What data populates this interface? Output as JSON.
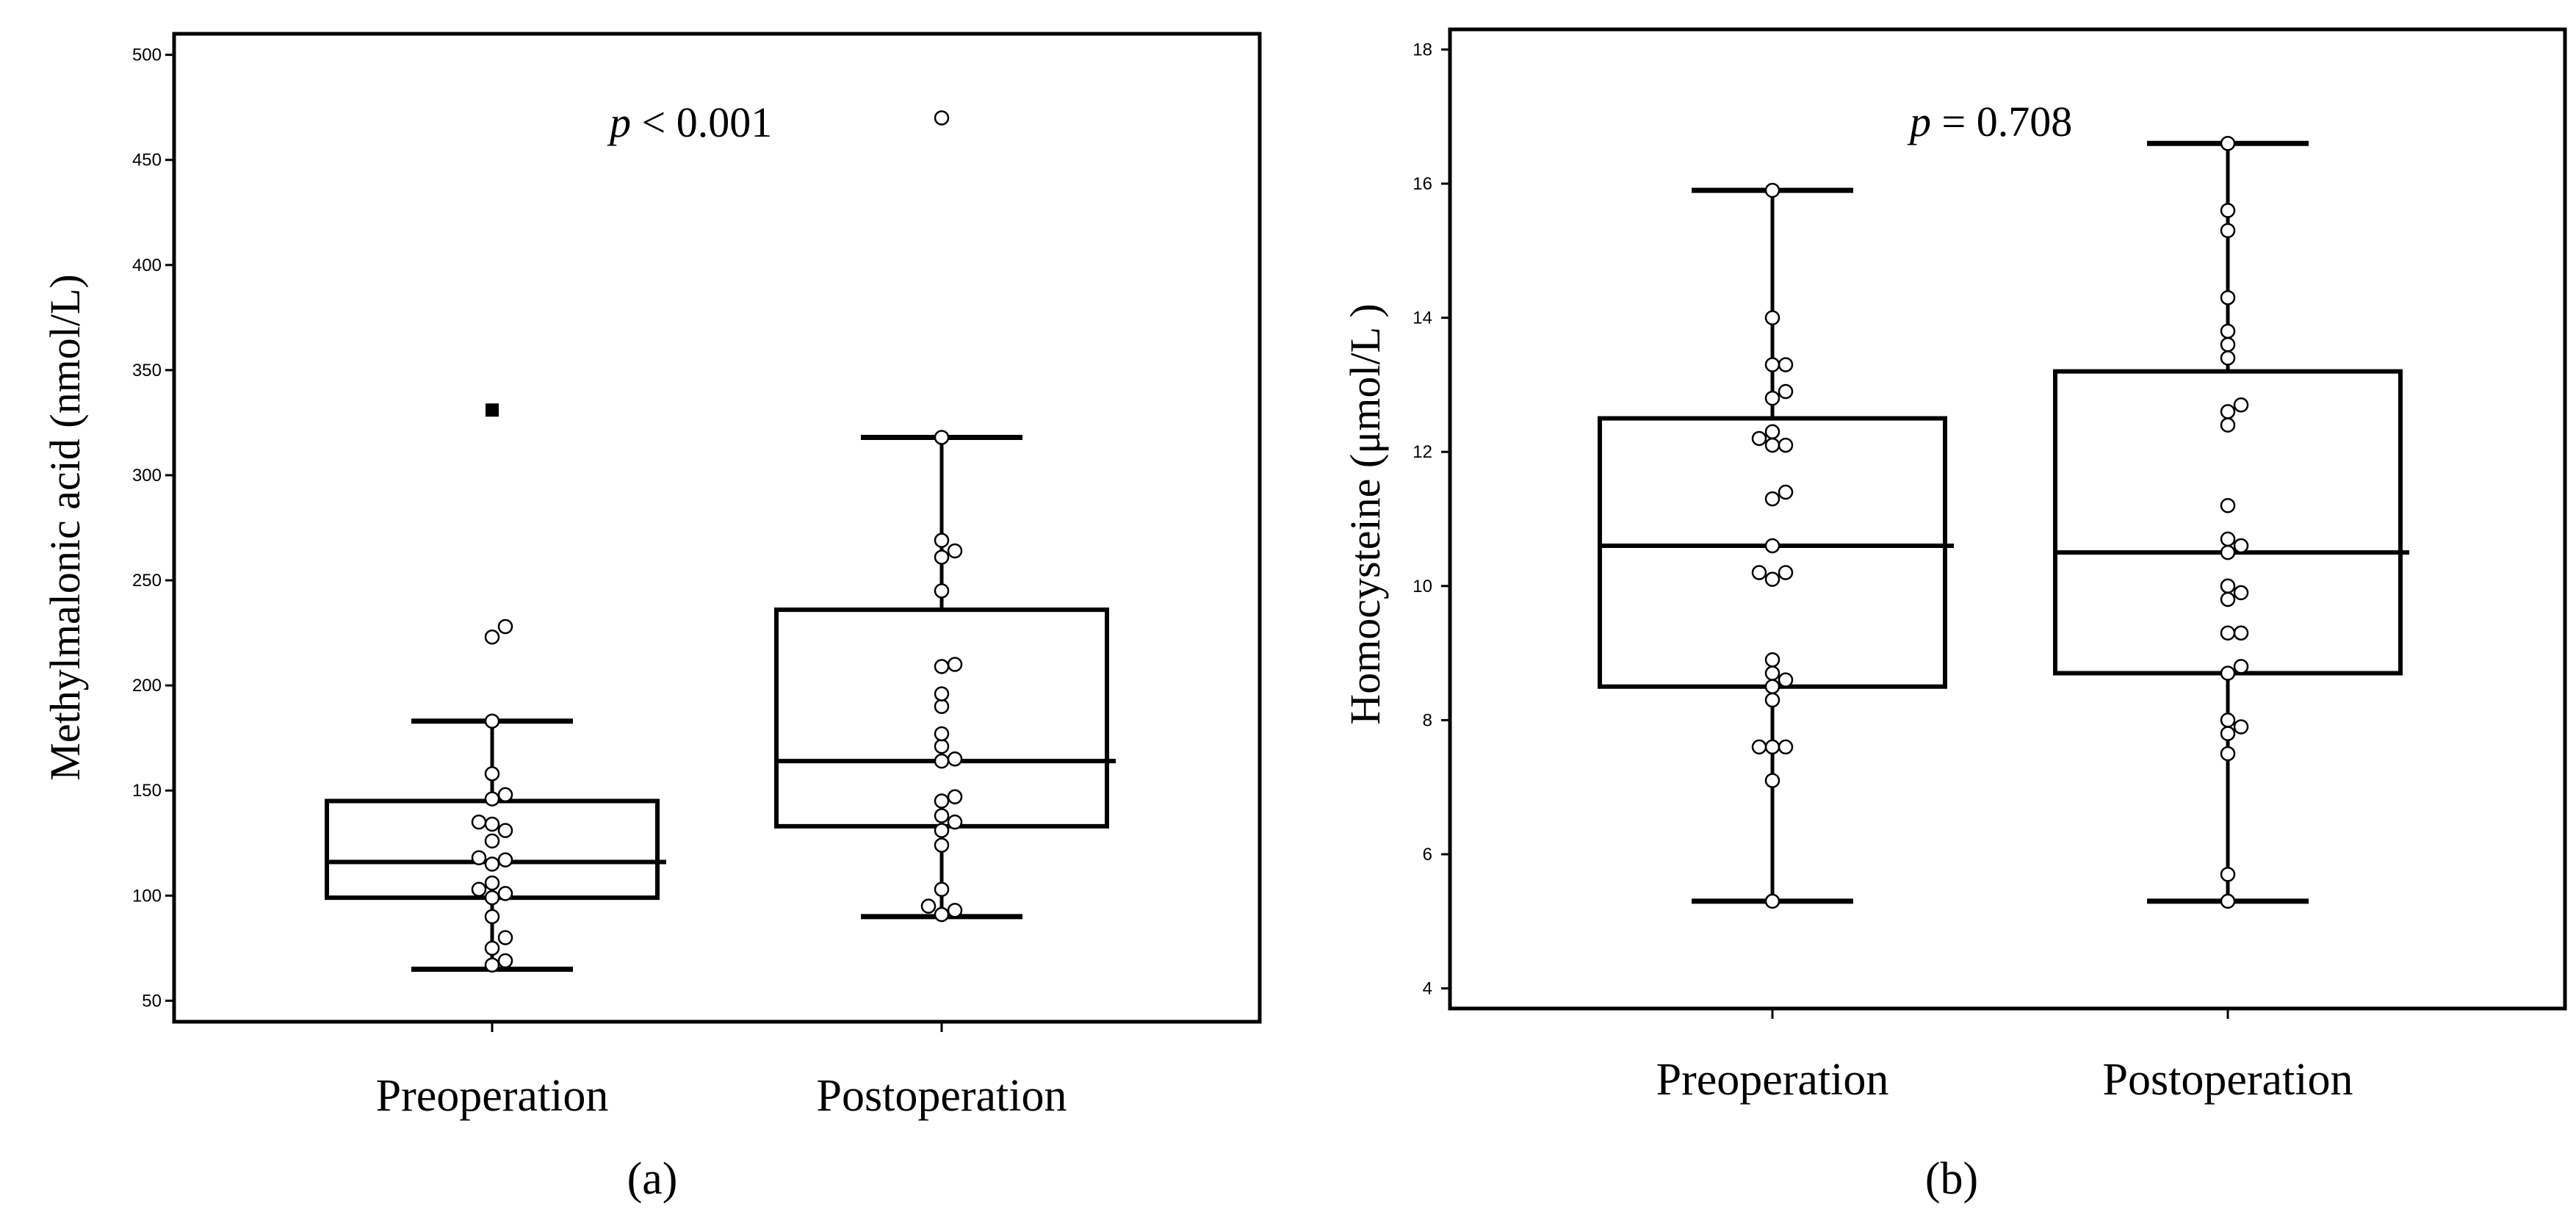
{
  "chart_data": [
    {
      "type": "box",
      "panel_label": "(a)",
      "ylabel": "Methylmalonic acid (nmol/L)",
      "annotation": {
        "p_symbol": "p",
        "p_text": " < 0.001"
      },
      "y_ticks": [
        50,
        100,
        150,
        200,
        250,
        300,
        350,
        400,
        450,
        500
      ],
      "ylim": [
        40,
        510
      ],
      "categories": [
        "Preoperation",
        "Postoperation"
      ],
      "boxes": [
        {
          "name": "Preoperation",
          "whisker_low": 65,
          "q1": 99,
          "median": 116,
          "q3": 145,
          "whisker_high": 183,
          "outliers_filled": [
            331
          ],
          "points": [
            228,
            223,
            183,
            158,
            148,
            146,
            135,
            134,
            131,
            126,
            118,
            117,
            115,
            106,
            103,
            101,
            99,
            90,
            80,
            75,
            69,
            67
          ]
        },
        {
          "name": "Postoperation",
          "whisker_low": 90,
          "q1": 133,
          "median": 164,
          "q3": 236,
          "whisker_high": 318,
          "outliers_filled": [],
          "points": [
            470,
            318,
            269,
            264,
            261,
            245,
            210,
            209,
            196,
            190,
            177,
            171,
            165,
            164,
            147,
            145,
            138,
            135,
            131,
            124,
            103,
            95,
            93,
            91
          ]
        }
      ]
    },
    {
      "type": "box",
      "panel_label": "(b)",
      "ylabel": "Homocysteine (μmol/L )",
      "annotation": {
        "p_symbol": "p",
        "p_text": " = 0.708"
      },
      "y_ticks": [
        4,
        6,
        8,
        10,
        12,
        14,
        16,
        18
      ],
      "ylim": [
        3.7,
        18.3
      ],
      "categories": [
        "Preoperation",
        "Postoperation"
      ],
      "boxes": [
        {
          "name": "Preoperation",
          "whisker_low": 5.3,
          "q1": 8.5,
          "median": 10.6,
          "q3": 12.5,
          "whisker_high": 15.9,
          "outliers_filled": [],
          "points": [
            15.9,
            14.0,
            13.3,
            13.3,
            12.9,
            12.8,
            12.3,
            12.2,
            12.1,
            12.1,
            11.4,
            11.3,
            10.6,
            10.2,
            10.2,
            10.1,
            8.9,
            8.7,
            8.6,
            8.5,
            8.3,
            7.6,
            7.6,
            7.6,
            7.1,
            5.3
          ]
        },
        {
          "name": "Postoperation",
          "whisker_low": 5.3,
          "q1": 8.7,
          "median": 10.5,
          "q3": 13.2,
          "whisker_high": 16.6,
          "outliers_filled": [],
          "points": [
            16.6,
            15.6,
            15.3,
            14.3,
            13.8,
            13.6,
            13.4,
            12.7,
            12.6,
            12.4,
            11.2,
            10.7,
            10.6,
            10.5,
            10.0,
            9.9,
            9.8,
            9.3,
            9.3,
            8.8,
            8.7,
            8.0,
            7.9,
            7.8,
            7.5,
            5.7,
            5.3
          ]
        }
      ]
    }
  ]
}
